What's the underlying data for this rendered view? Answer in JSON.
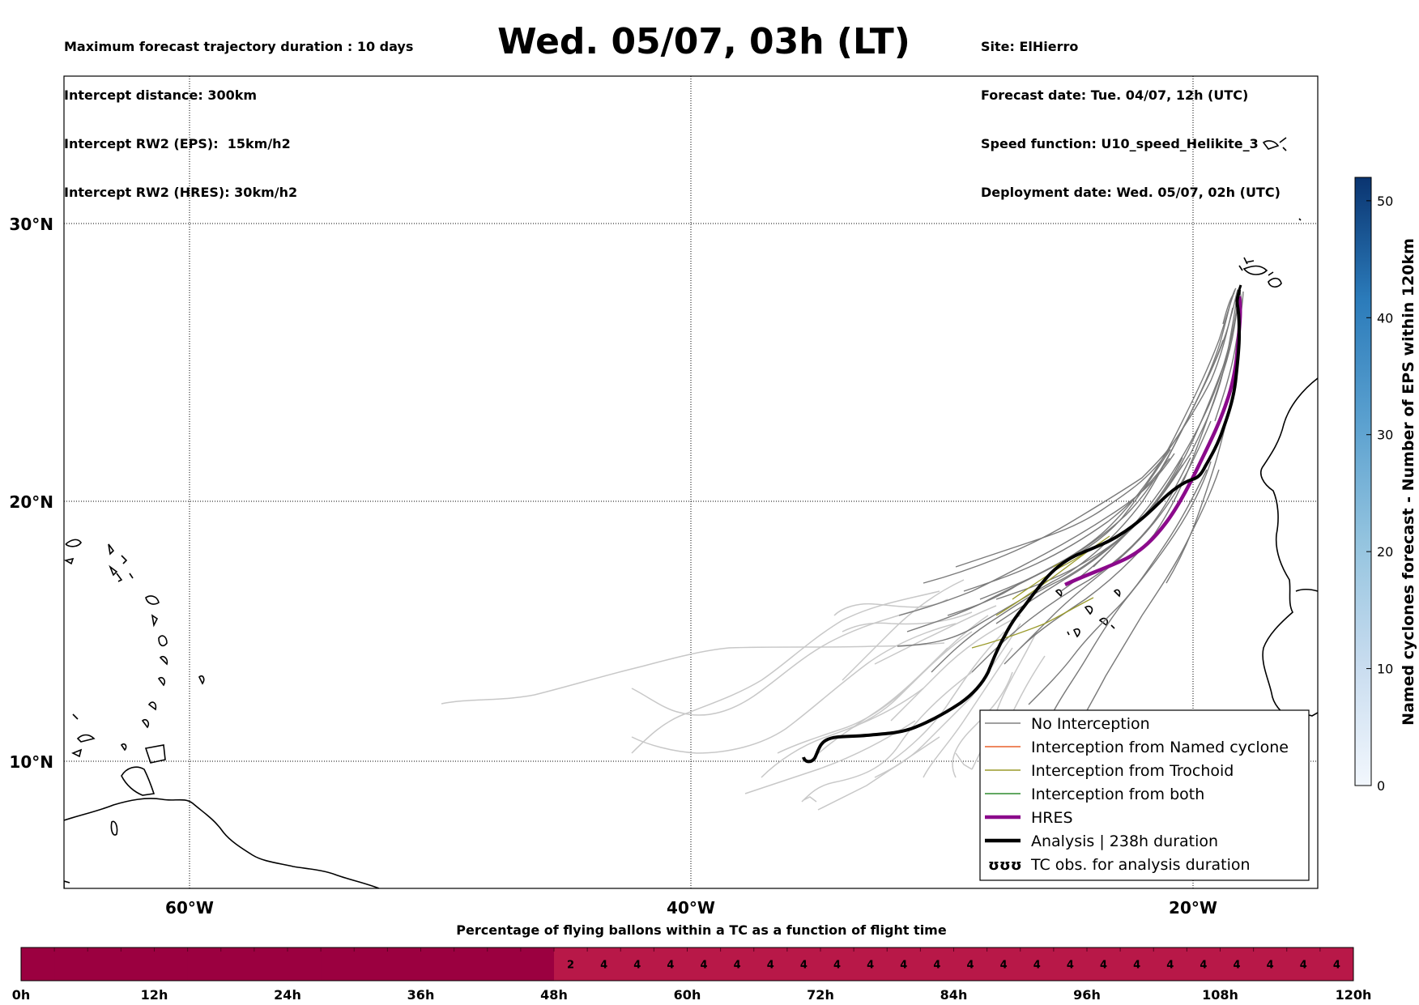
{
  "title": "Wed. 05/07, 03h (LT)",
  "header_left": [
    "Maximum forecast trajectory duration : 10 days",
    "Intercept distance: 300km",
    "Intercept RW2 (EPS):  15km/h2",
    "Intercept RW2 (HRES): 30km/h2"
  ],
  "header_right": [
    "Site: ElHierro",
    "Forecast date: Tue. 04/07, 12h (UTC)",
    "Speed function: U10_speed_Helikite_3",
    "Deployment date: Wed. 05/07, 02h (UTC)"
  ],
  "map": {
    "lat_labels": [
      "30°N",
      "20°N",
      "10°N"
    ],
    "lon_labels": [
      "60°W",
      "40°W",
      "20°W"
    ]
  },
  "legend": [
    {
      "label": "No Interception",
      "color": "#808080",
      "style": "thin"
    },
    {
      "label": "Interception from Named cyclone",
      "color": "#e8602a",
      "style": "thin"
    },
    {
      "label": "Interception from Trochoid",
      "color": "#9a9a2a",
      "style": "thin"
    },
    {
      "label": "Interception from both",
      "color": "#2e8b2e",
      "style": "thin"
    },
    {
      "label": "HRES",
      "color": "#8b0a8b",
      "style": "thick"
    },
    {
      "label": "Analysis | 238h duration",
      "color": "#000000",
      "style": "thick"
    },
    {
      "label": "TC obs. for analysis duration",
      "color": "#000000",
      "style": "symbol",
      "symbol": "ʊʊʊ"
    }
  ],
  "colorbar": {
    "label": "Named cyclones forecast - Number of EPS within 120km",
    "ticks": [
      "0",
      "10",
      "20",
      "30",
      "40",
      "50"
    ],
    "min": 0,
    "max": 52
  },
  "timebar": {
    "title": "Percentage of flying ballons within a TC as a function of flight time",
    "tick_labels": [
      "0h",
      "12h",
      "24h",
      "36h",
      "48h",
      "60h",
      "72h",
      "84h",
      "96h",
      "108h",
      "120h"
    ],
    "cell_values": [
      "2",
      "4",
      "4",
      "4",
      "4",
      "4",
      "4",
      "4",
      "4",
      "4",
      "4",
      "4",
      "4",
      "4",
      "4",
      "4",
      "4",
      "4",
      "4",
      "4",
      "4",
      "4",
      "4",
      "4"
    ],
    "colors": {
      "empty": "#9b0040",
      "filled": "#b81848"
    }
  }
}
